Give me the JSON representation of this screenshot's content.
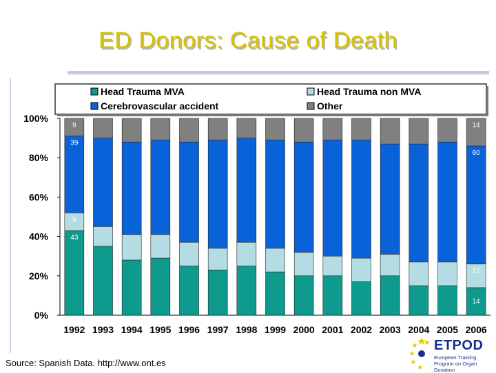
{
  "slide": {
    "title": "ED Donors: Cause of Death",
    "source": "Source: Spanish Data. http://www.ont.es"
  },
  "logo": {
    "name": "ETPOD",
    "tagline": "European Training Program on Organ Donation"
  },
  "colors": {
    "title": "#d6c200",
    "head_trauma_mva": "#0f9a8e",
    "head_trauma_non_mva": "#b3dde3",
    "cerebrovascular": "#0a62d9",
    "other": "#808080"
  },
  "chart_data": {
    "type": "bar",
    "stacked": true,
    "percent": true,
    "categories": [
      "1992",
      "1993",
      "1994",
      "1995",
      "1996",
      "1997",
      "1998",
      "1999",
      "2000",
      "2001",
      "2002",
      "2003",
      "2004",
      "2005",
      "2006"
    ],
    "series": [
      {
        "name": "Head Trauma MVA",
        "key": "head_trauma_mva",
        "values": [
          43,
          35,
          28,
          29,
          25,
          23,
          25,
          22,
          20,
          20,
          17,
          20,
          15,
          15,
          14
        ]
      },
      {
        "name": "Head Trauma non MVA",
        "key": "head_trauma_non_mva",
        "values": [
          9,
          10,
          13,
          12,
          12,
          11,
          12,
          12,
          12,
          10,
          12,
          11,
          12,
          12,
          12
        ]
      },
      {
        "name": "Cerebrovascular accident",
        "key": "cerebrovascular",
        "values": [
          39,
          45,
          47,
          48,
          51,
          55,
          53,
          55,
          56,
          59,
          60,
          56,
          60,
          61,
          60
        ]
      },
      {
        "name": "Other",
        "key": "other",
        "values": [
          9,
          10,
          12,
          11,
          12,
          11,
          10,
          11,
          12,
          11,
          11,
          13,
          13,
          12,
          14
        ]
      }
    ],
    "data_labels": [
      {
        "category": "1992",
        "series": "Other",
        "text": "9"
      },
      {
        "category": "1992",
        "series": "Cerebrovascular accident",
        "text": "39"
      },
      {
        "category": "1992",
        "series": "Head Trauma non MVA",
        "text": "9"
      },
      {
        "category": "1992",
        "series": "Head Trauma MVA",
        "text": "43"
      },
      {
        "category": "2006",
        "series": "Other",
        "text": "14"
      },
      {
        "category": "2006",
        "series": "Cerebrovascular accident",
        "text": "60"
      },
      {
        "category": "2006",
        "series": "Head Trauma non MVA",
        "text": "12"
      },
      {
        "category": "2006",
        "series": "Head Trauma MVA",
        "text": "14"
      }
    ],
    "yticks": [
      "0%",
      "20%",
      "40%",
      "60%",
      "80%",
      "100%"
    ],
    "ylim": [
      0,
      100
    ],
    "legend": {
      "placement": "top",
      "order": [
        "Head Trauma MVA",
        "Head Trauma non MVA",
        "Cerebrovascular accident",
        "Other"
      ]
    }
  }
}
